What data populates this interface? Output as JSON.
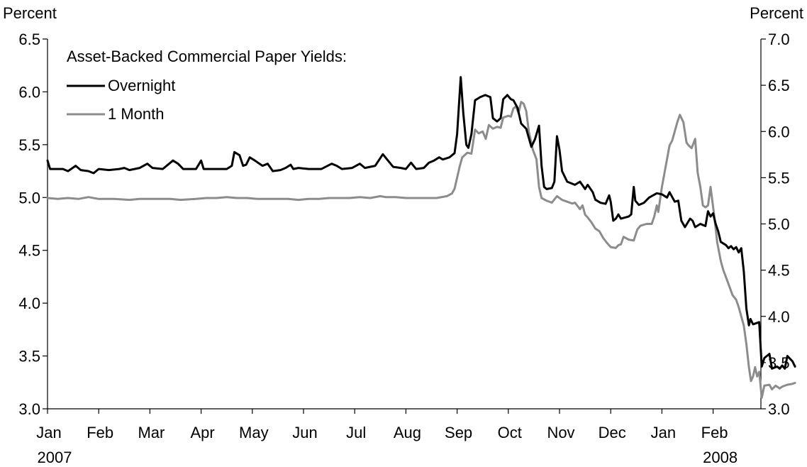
{
  "chart_data": {
    "type": "line",
    "left_axis": {
      "label": "Percent",
      "range": [
        3.0,
        6.5
      ],
      "ticks": [
        "3.0",
        "3.5",
        "4.0",
        "4.5",
        "5.0",
        "5.5",
        "6.0",
        "6.5"
      ]
    },
    "right_axis": {
      "label": "Percent",
      "range": [
        3.0,
        7.0
      ],
      "ticks": [
        "3.0",
        "3.5",
        "4.0",
        "4.5",
        "5.0",
        "5.5",
        "6.0",
        "6.5",
        "7.0"
      ]
    },
    "x_axis": {
      "months": [
        "Jan",
        "Feb",
        "Mar",
        "Apr",
        "May",
        "Jun",
        "Jul",
        "Aug",
        "Sep",
        "Oct",
        "Nov",
        "Dec",
        "Jan",
        "Feb"
      ],
      "year_labels": [
        {
          "text": "2007",
          "month_index": 0
        },
        {
          "text": "2008",
          "month_index": 13
        }
      ],
      "range_months": [
        0,
        14.0
      ]
    },
    "legend": {
      "title": "Asset-Backed Commercial Paper Yields:",
      "placement": "top-left"
    },
    "grid": false,
    "series": [
      {
        "name": "Overnight",
        "axis": "left",
        "color": "#000000",
        "points": [
          [
            0.0,
            5.35
          ],
          [
            0.05,
            5.27
          ],
          [
            0.3,
            5.27
          ],
          [
            0.4,
            5.25
          ],
          [
            0.55,
            5.3
          ],
          [
            0.65,
            5.26
          ],
          [
            0.8,
            5.25
          ],
          [
            0.9,
            5.23
          ],
          [
            1.0,
            5.27
          ],
          [
            1.2,
            5.26
          ],
          [
            1.4,
            5.27
          ],
          [
            1.5,
            5.28
          ],
          [
            1.6,
            5.26
          ],
          [
            1.8,
            5.28
          ],
          [
            1.95,
            5.32
          ],
          [
            2.05,
            5.28
          ],
          [
            2.25,
            5.27
          ],
          [
            2.45,
            5.35
          ],
          [
            2.55,
            5.32
          ],
          [
            2.65,
            5.27
          ],
          [
            2.9,
            5.27
          ],
          [
            3.0,
            5.35
          ],
          [
            3.05,
            5.27
          ],
          [
            3.5,
            5.27
          ],
          [
            3.6,
            5.3
          ],
          [
            3.65,
            5.43
          ],
          [
            3.75,
            5.4
          ],
          [
            3.82,
            5.3
          ],
          [
            3.88,
            5.31
          ],
          [
            3.95,
            5.38
          ],
          [
            4.05,
            5.35
          ],
          [
            4.2,
            5.3
          ],
          [
            4.3,
            5.32
          ],
          [
            4.4,
            5.25
          ],
          [
            4.55,
            5.26
          ],
          [
            4.65,
            5.28
          ],
          [
            4.75,
            5.31
          ],
          [
            4.8,
            5.27
          ],
          [
            4.9,
            5.28
          ],
          [
            5.1,
            5.27
          ],
          [
            5.35,
            5.27
          ],
          [
            5.55,
            5.32
          ],
          [
            5.65,
            5.3
          ],
          [
            5.75,
            5.27
          ],
          [
            5.95,
            5.28
          ],
          [
            6.1,
            5.32
          ],
          [
            6.2,
            5.28
          ],
          [
            6.4,
            5.3
          ],
          [
            6.55,
            5.41
          ],
          [
            6.65,
            5.35
          ],
          [
            6.75,
            5.29
          ],
          [
            6.9,
            5.28
          ],
          [
            7.0,
            5.27
          ],
          [
            7.1,
            5.33
          ],
          [
            7.2,
            5.27
          ],
          [
            7.35,
            5.28
          ],
          [
            7.45,
            5.33
          ],
          [
            7.55,
            5.35
          ],
          [
            7.65,
            5.38
          ],
          [
            7.72,
            5.36
          ],
          [
            7.85,
            5.38
          ],
          [
            7.95,
            5.42
          ],
          [
            8.0,
            5.6
          ],
          [
            8.07,
            6.14
          ],
          [
            8.12,
            5.8
          ],
          [
            8.18,
            5.5
          ],
          [
            8.22,
            5.47
          ],
          [
            8.28,
            5.6
          ],
          [
            8.35,
            5.92
          ],
          [
            8.45,
            5.95
          ],
          [
            8.55,
            5.97
          ],
          [
            8.65,
            5.95
          ],
          [
            8.7,
            5.75
          ],
          [
            8.78,
            5.72
          ],
          [
            8.85,
            5.75
          ],
          [
            8.9,
            5.93
          ],
          [
            8.98,
            5.97
          ],
          [
            9.05,
            5.93
          ],
          [
            9.1,
            5.92
          ],
          [
            9.18,
            5.85
          ],
          [
            9.25,
            5.7
          ],
          [
            9.35,
            5.65
          ],
          [
            9.45,
            5.48
          ],
          [
            9.52,
            5.55
          ],
          [
            9.6,
            5.68
          ],
          [
            9.65,
            5.3
          ],
          [
            9.7,
            5.1
          ],
          [
            9.75,
            5.08
          ],
          [
            9.85,
            5.09
          ],
          [
            9.9,
            5.15
          ],
          [
            9.95,
            5.58
          ],
          [
            10.0,
            5.45
          ],
          [
            10.05,
            5.25
          ],
          [
            10.15,
            5.15
          ],
          [
            10.3,
            5.12
          ],
          [
            10.4,
            5.15
          ],
          [
            10.5,
            5.08
          ],
          [
            10.55,
            5.12
          ],
          [
            10.65,
            5.05
          ],
          [
            10.7,
            4.98
          ],
          [
            10.8,
            4.95
          ],
          [
            10.9,
            4.94
          ],
          [
            10.97,
            5.02
          ],
          [
            11.0,
            4.96
          ],
          [
            11.05,
            4.78
          ],
          [
            11.1,
            4.8
          ],
          [
            11.15,
            4.84
          ],
          [
            11.2,
            4.8
          ],
          [
            11.35,
            4.82
          ],
          [
            11.4,
            4.84
          ],
          [
            11.45,
            5.1
          ],
          [
            11.48,
            4.97
          ],
          [
            11.55,
            4.93
          ],
          [
            11.65,
            4.95
          ],
          [
            11.75,
            5.0
          ],
          [
            11.9,
            5.04
          ],
          [
            12.0,
            5.03
          ],
          [
            12.1,
            5.0
          ],
          [
            12.15,
            5.05
          ],
          [
            12.25,
            4.96
          ],
          [
            12.32,
            4.97
          ],
          [
            12.38,
            4.78
          ],
          [
            12.45,
            4.72
          ],
          [
            12.55,
            4.8
          ],
          [
            12.6,
            4.78
          ],
          [
            12.65,
            4.72
          ],
          [
            12.75,
            4.75
          ],
          [
            12.85,
            4.73
          ],
          [
            12.9,
            4.87
          ],
          [
            12.95,
            4.82
          ],
          [
            13.0,
            4.85
          ],
          [
            13.05,
            4.75
          ],
          [
            13.1,
            4.68
          ],
          [
            13.15,
            4.58
          ],
          [
            13.25,
            4.55
          ],
          [
            13.3,
            4.52
          ],
          [
            13.35,
            4.54
          ],
          [
            13.4,
            4.51
          ],
          [
            13.45,
            4.53
          ],
          [
            13.5,
            4.48
          ],
          [
            13.55,
            4.52
          ],
          [
            13.6,
            4.3
          ],
          [
            13.65,
            3.95
          ],
          [
            13.7,
            3.79
          ],
          [
            13.73,
            3.85
          ],
          [
            13.78,
            3.8
          ],
          [
            13.9,
            3.82
          ],
          [
            13.95,
            3.4
          ],
          [
            14.0,
            3.48
          ],
          [
            14.1,
            3.52
          ],
          [
            14.15,
            3.38
          ],
          [
            14.25,
            3.4
          ],
          [
            14.3,
            3.38
          ],
          [
            14.35,
            3.41
          ],
          [
            14.4,
            3.38
          ],
          [
            14.45,
            3.5
          ],
          [
            14.55,
            3.45
          ],
          [
            14.6,
            3.4
          ]
        ]
      },
      {
        "name": "1 Month",
        "axis": "right",
        "color": "#8c8c8c",
        "points": [
          [
            0.0,
            5.28
          ],
          [
            0.2,
            5.27
          ],
          [
            0.4,
            5.28
          ],
          [
            0.6,
            5.27
          ],
          [
            0.8,
            5.29
          ],
          [
            1.0,
            5.27
          ],
          [
            1.3,
            5.27
          ],
          [
            1.6,
            5.26
          ],
          [
            1.8,
            5.27
          ],
          [
            2.0,
            5.27
          ],
          [
            2.2,
            5.27
          ],
          [
            2.4,
            5.27
          ],
          [
            2.6,
            5.26
          ],
          [
            2.9,
            5.27
          ],
          [
            3.1,
            5.28
          ],
          [
            3.3,
            5.28
          ],
          [
            3.5,
            5.29
          ],
          [
            3.7,
            5.28
          ],
          [
            3.9,
            5.28
          ],
          [
            4.1,
            5.27
          ],
          [
            4.3,
            5.27
          ],
          [
            4.5,
            5.27
          ],
          [
            4.7,
            5.27
          ],
          [
            4.9,
            5.26
          ],
          [
            5.1,
            5.27
          ],
          [
            5.3,
            5.27
          ],
          [
            5.5,
            5.28
          ],
          [
            5.7,
            5.28
          ],
          [
            5.9,
            5.28
          ],
          [
            6.1,
            5.29
          ],
          [
            6.3,
            5.28
          ],
          [
            6.5,
            5.3
          ],
          [
            6.6,
            5.29
          ],
          [
            6.8,
            5.29
          ],
          [
            7.0,
            5.28
          ],
          [
            7.2,
            5.28
          ],
          [
            7.4,
            5.28
          ],
          [
            7.6,
            5.28
          ],
          [
            7.8,
            5.3
          ],
          [
            7.9,
            5.33
          ],
          [
            7.95,
            5.38
          ],
          [
            8.05,
            5.62
          ],
          [
            8.1,
            5.72
          ],
          [
            8.2,
            5.77
          ],
          [
            8.28,
            5.76
          ],
          [
            8.35,
            6.02
          ],
          [
            8.42,
            5.98
          ],
          [
            8.5,
            6.0
          ],
          [
            8.56,
            5.92
          ],
          [
            8.62,
            6.07
          ],
          [
            8.7,
            6.03
          ],
          [
            8.78,
            6.05
          ],
          [
            8.85,
            6.04
          ],
          [
            8.9,
            6.15
          ],
          [
            9.0,
            6.17
          ],
          [
            9.05,
            6.16
          ],
          [
            9.1,
            6.25
          ],
          [
            9.15,
            6.27
          ],
          [
            9.2,
            6.2
          ],
          [
            9.25,
            6.32
          ],
          [
            9.3,
            6.3
          ],
          [
            9.35,
            6.22
          ],
          [
            9.4,
            6.0
          ],
          [
            9.48,
            5.8
          ],
          [
            9.55,
            5.7
          ],
          [
            9.6,
            5.4
          ],
          [
            9.65,
            5.28
          ],
          [
            9.75,
            5.25
          ],
          [
            9.85,
            5.23
          ],
          [
            9.95,
            5.3
          ],
          [
            10.05,
            5.26
          ],
          [
            10.15,
            5.24
          ],
          [
            10.25,
            5.22
          ],
          [
            10.3,
            5.23
          ],
          [
            10.4,
            5.16
          ],
          [
            10.45,
            5.2
          ],
          [
            10.5,
            5.1
          ],
          [
            10.55,
            5.07
          ],
          [
            10.62,
            5.02
          ],
          [
            10.7,
            4.95
          ],
          [
            10.78,
            4.92
          ],
          [
            10.85,
            4.85
          ],
          [
            10.92,
            4.8
          ],
          [
            11.0,
            4.75
          ],
          [
            11.1,
            4.74
          ],
          [
            11.15,
            4.77
          ],
          [
            11.2,
            4.78
          ],
          [
            11.25,
            4.86
          ],
          [
            11.35,
            4.83
          ],
          [
            11.45,
            4.82
          ],
          [
            11.52,
            4.94
          ],
          [
            11.58,
            4.98
          ],
          [
            11.7,
            5.0
          ],
          [
            11.8,
            5.0
          ],
          [
            11.85,
            5.08
          ],
          [
            11.9,
            5.2
          ],
          [
            11.93,
            5.13
          ],
          [
            12.0,
            5.4
          ],
          [
            12.05,
            5.55
          ],
          [
            12.1,
            5.7
          ],
          [
            12.15,
            5.85
          ],
          [
            12.2,
            5.9
          ],
          [
            12.25,
            6.0
          ],
          [
            12.3,
            6.1
          ],
          [
            12.35,
            6.18
          ],
          [
            12.42,
            6.1
          ],
          [
            12.48,
            5.88
          ],
          [
            12.52,
            5.85
          ],
          [
            12.58,
            5.82
          ],
          [
            12.65,
            5.92
          ],
          [
            12.7,
            5.55
          ],
          [
            12.75,
            5.4
          ],
          [
            12.8,
            5.2
          ],
          [
            12.85,
            5.18
          ],
          [
            12.9,
            5.2
          ],
          [
            12.95,
            5.4
          ],
          [
            13.02,
            5.1
          ],
          [
            13.08,
            4.8
          ],
          [
            13.15,
            4.6
          ],
          [
            13.2,
            4.5
          ],
          [
            13.3,
            4.35
          ],
          [
            13.38,
            4.23
          ],
          [
            13.45,
            4.18
          ],
          [
            13.5,
            4.1
          ],
          [
            13.55,
            4.0
          ],
          [
            13.6,
            3.9
          ],
          [
            13.65,
            3.7
          ],
          [
            13.7,
            3.45
          ],
          [
            13.74,
            3.3
          ],
          [
            13.78,
            3.35
          ],
          [
            13.82,
            3.45
          ],
          [
            13.86,
            3.35
          ],
          [
            13.9,
            3.4
          ],
          [
            13.95,
            3.12
          ],
          [
            14.0,
            3.25
          ],
          [
            14.1,
            3.26
          ],
          [
            14.15,
            3.21
          ],
          [
            14.22,
            3.25
          ],
          [
            14.3,
            3.22
          ],
          [
            14.35,
            3.24
          ],
          [
            14.4,
            3.25
          ],
          [
            14.45,
            3.26
          ],
          [
            14.55,
            3.27
          ],
          [
            14.6,
            3.28
          ]
        ]
      }
    ]
  }
}
